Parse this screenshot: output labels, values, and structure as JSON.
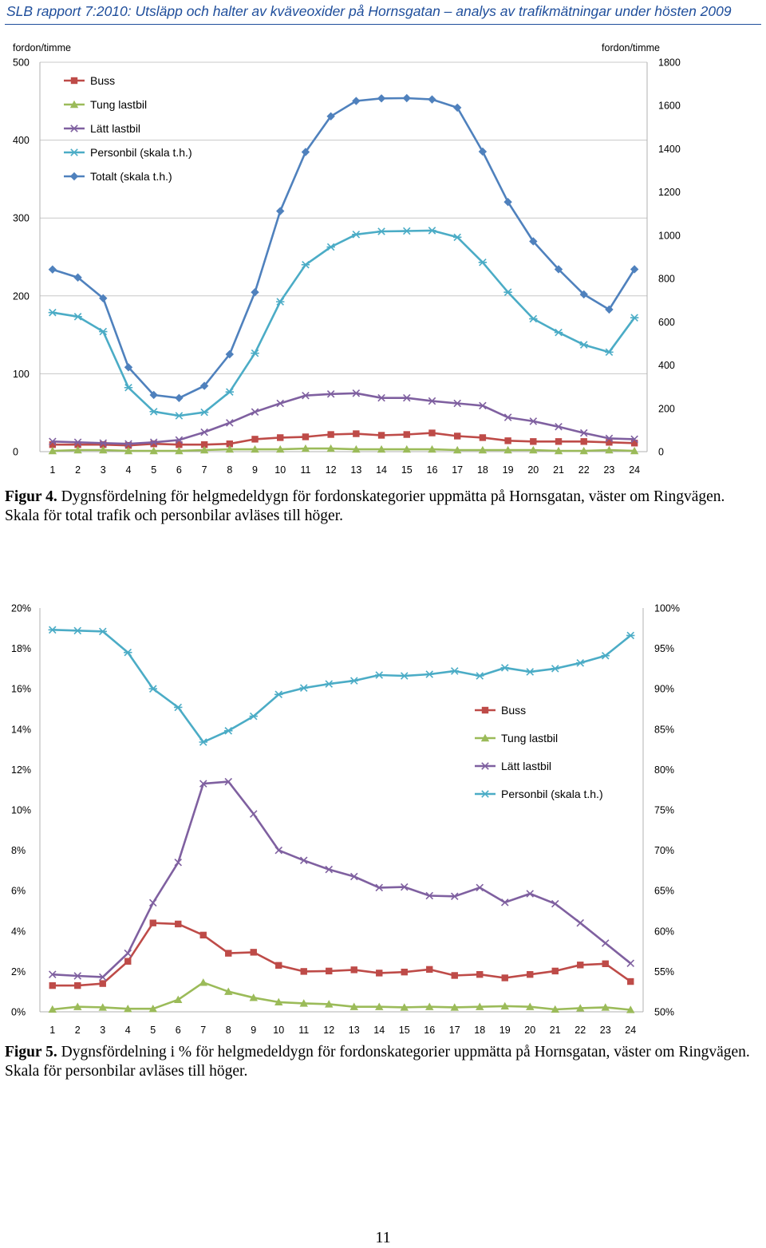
{
  "header": {
    "title": "SLB rapport 7:2010: Utsläpp och halter av kväveoxider på Hornsgatan – analys av trafikmätningar under hösten 2009"
  },
  "colors": {
    "buss": "#be4b48",
    "tung": "#9bbb59",
    "latt": "#7f60a0",
    "personbil": "#4bacc6",
    "totalt": "#4f81bd",
    "grid": "#c8c8c8"
  },
  "figures": [
    {
      "label": "Figur 4.",
      "text": " Dygnsfördelning för helgmedeldygn för fordonskategorier uppmätta på Hornsgatan, väster om Ringvägen. Skala för total trafik och personbilar avläses till höger."
    },
    {
      "label": "Figur 5.",
      "text": " Dygnsfördelning i % för helgmedeldygn för fordonskategorier uppmätta på Hornsgatan, väster om Ringvägen. Skala för personbilar avläses till höger."
    }
  ],
  "page_number": "11",
  "chart_data": [
    {
      "type": "line",
      "x": [
        1,
        2,
        3,
        4,
        5,
        6,
        7,
        8,
        9,
        10,
        11,
        12,
        13,
        14,
        15,
        16,
        17,
        18,
        19,
        20,
        21,
        22,
        23,
        24
      ],
      "left_axis": {
        "label": "fordon/timme",
        "ylim": [
          0,
          500
        ],
        "ticks": [
          "0",
          "100",
          "200",
          "300",
          "400",
          "500"
        ]
      },
      "right_axis": {
        "label": "fordon/timme",
        "ylim": [
          0,
          1800
        ],
        "ticks": [
          "0",
          "200",
          "400",
          "600",
          "800",
          "1000",
          "1200",
          "1400",
          "1600",
          "1800"
        ]
      },
      "grid": true,
      "legend_position": "top-left",
      "legend": [
        "Buss",
        "Tung lastbil",
        "Lätt lastbil",
        "Personbil (skala t.h.)",
        "Totalt (skala t.h.)"
      ],
      "series": [
        {
          "name": "Buss",
          "axis": "left",
          "color": "buss",
          "marker": "square",
          "values": [
            9,
            9,
            9,
            8,
            10,
            9,
            9,
            10,
            16,
            18,
            19,
            22,
            23,
            21,
            22,
            24,
            20,
            18,
            14,
            13,
            13,
            13,
            12,
            11
          ]
        },
        {
          "name": "Tung lastbil",
          "axis": "left",
          "color": "tung",
          "marker": "triangle",
          "values": [
            1,
            2,
            2,
            1,
            1,
            1,
            2,
            3,
            3,
            3,
            4,
            4,
            3,
            3,
            3,
            3,
            2,
            2,
            2,
            2,
            1,
            1,
            2,
            1
          ]
        },
        {
          "name": "Lätt lastbil",
          "axis": "left",
          "color": "latt",
          "marker": "x",
          "values": [
            13,
            12,
            11,
            10,
            12,
            15,
            25,
            37,
            51,
            62,
            72,
            74,
            75,
            69,
            69,
            65,
            62,
            59,
            44,
            39,
            32,
            24,
            17,
            16
          ]
        },
        {
          "name": "Personbil (skala t.h.)",
          "axis": "right",
          "color": "personbil",
          "marker": "star",
          "values": [
            643,
            624,
            555,
            296,
            185,
            166,
            182,
            276,
            455,
            693,
            864,
            946,
            1004,
            1018,
            1020,
            1022,
            991,
            875,
            737,
            614,
            551,
            494,
            460,
            619
          ]
        },
        {
          "name": "Totalt (skala t.h.)",
          "axis": "right",
          "color": "totalt",
          "marker": "diamond",
          "values": [
            842,
            805,
            709,
            390,
            262,
            248,
            304,
            450,
            737,
            1112,
            1385,
            1550,
            1621,
            1633,
            1634,
            1628,
            1590,
            1387,
            1154,
            972,
            843,
            727,
            657,
            843
          ]
        }
      ]
    },
    {
      "type": "line",
      "x": [
        1,
        2,
        3,
        4,
        5,
        6,
        7,
        8,
        9,
        10,
        11,
        12,
        13,
        14,
        15,
        16,
        17,
        18,
        19,
        20,
        21,
        22,
        23,
        24
      ],
      "left_axis": {
        "ylim": [
          0,
          20
        ],
        "ticks": [
          "0%",
          "2%",
          "4%",
          "6%",
          "8%",
          "10%",
          "12%",
          "14%",
          "16%",
          "18%",
          "20%"
        ]
      },
      "right_axis": {
        "ylim": [
          50,
          100
        ],
        "ticks": [
          "50%",
          "55%",
          "60%",
          "65%",
          "70%",
          "75%",
          "80%",
          "85%",
          "90%",
          "95%",
          "100%"
        ]
      },
      "grid": false,
      "legend_position": "center-right",
      "legend": [
        "Buss",
        "Tung lastbil",
        "Lätt lastbil",
        "Personbil (skala t.h.)"
      ],
      "series": [
        {
          "name": "Buss",
          "axis": "left",
          "color": "buss",
          "marker": "square",
          "values": [
            1.3,
            1.3,
            1.4,
            2.5,
            4.4,
            4.35,
            3.8,
            2.9,
            2.95,
            2.3,
            2.0,
            2.02,
            2.08,
            1.92,
            1.97,
            2.1,
            1.8,
            1.85,
            1.68,
            1.85,
            2.02,
            2.32,
            2.38,
            1.5
          ]
        },
        {
          "name": "Tung lastbil",
          "axis": "left",
          "color": "tung",
          "marker": "triangle",
          "values": [
            0.12,
            0.25,
            0.22,
            0.15,
            0.15,
            0.6,
            1.45,
            1.0,
            0.7,
            0.48,
            0.42,
            0.38,
            0.25,
            0.25,
            0.22,
            0.25,
            0.22,
            0.25,
            0.28,
            0.25,
            0.12,
            0.18,
            0.22,
            0.1
          ]
        },
        {
          "name": "Lätt lastbil",
          "axis": "left",
          "color": "latt",
          "marker": "x",
          "values": [
            1.85,
            1.78,
            1.72,
            2.9,
            5.4,
            7.4,
            11.3,
            11.4,
            9.8,
            8.0,
            7.5,
            7.05,
            6.7,
            6.15,
            6.18,
            5.75,
            5.72,
            6.15,
            5.42,
            5.85,
            5.35,
            4.4,
            3.4,
            2.4
          ]
        },
        {
          "name": "Personbil (skala t.h.)",
          "axis": "right",
          "color": "personbil",
          "marker": "star",
          "values": [
            97.3,
            97.2,
            97.1,
            94.5,
            90.0,
            87.7,
            83.4,
            84.8,
            86.6,
            89.3,
            90.1,
            90.6,
            91.0,
            91.7,
            91.6,
            91.8,
            92.2,
            91.6,
            92.6,
            92.1,
            92.5,
            93.2,
            94.1,
            96.6
          ]
        }
      ]
    }
  ]
}
